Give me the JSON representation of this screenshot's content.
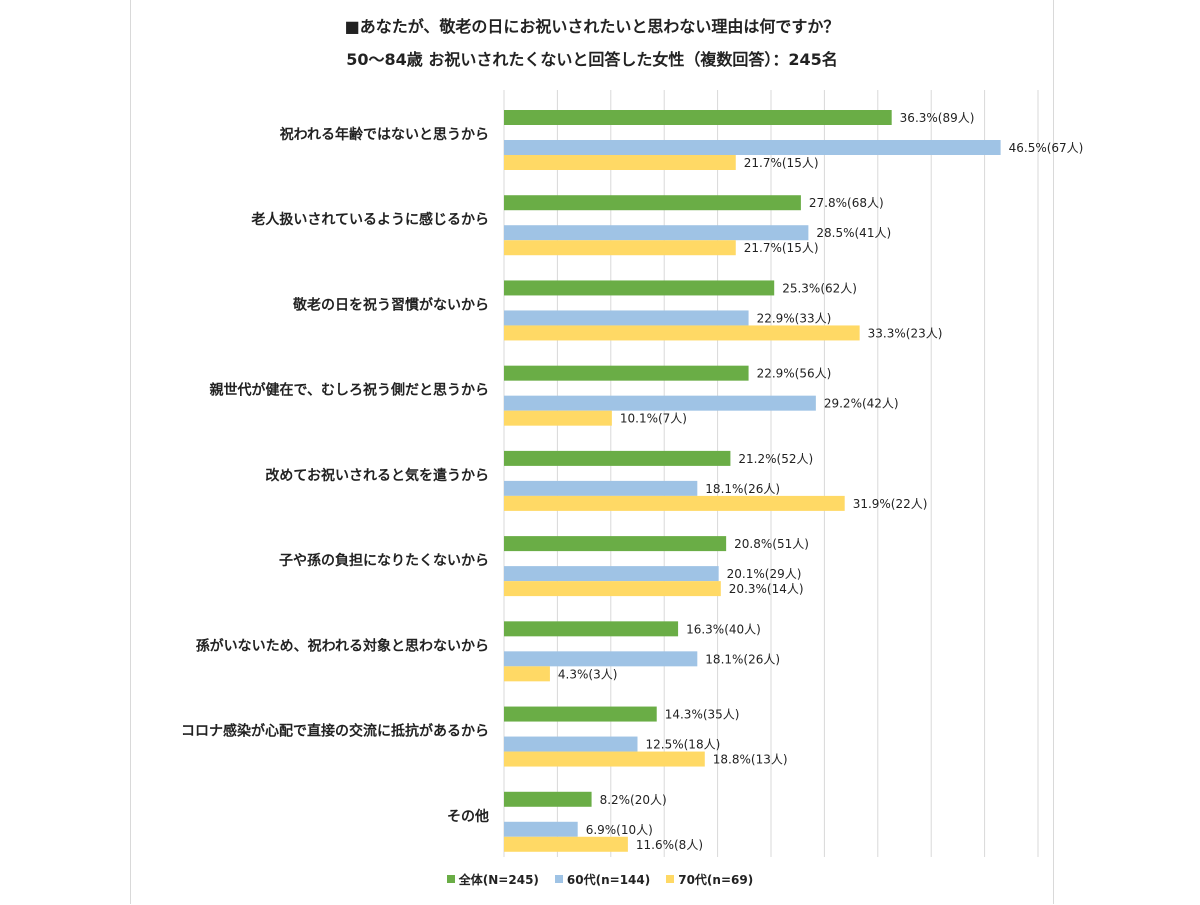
{
  "chart_data": {
    "type": "bar",
    "orientation": "horizontal",
    "title": "■あなたが、敬老の日にお祝いされたいと思わない理由は何ですか？",
    "subtitle": "50〜84歳 お祝いされたくないと回答した女性（複数回答）：245名",
    "xlim": [
      0,
      50
    ],
    "grid": true,
    "legend_position": "bottom",
    "categories": [
      "祝われる年齢ではないと思うから",
      "老人扱いされているように感じるから",
      "敬老の日を祝う習慣がないから",
      "親世代が健在で、むしろ祝う側だと思うから",
      "改めてお祝いされると気を遣うから",
      "子や孫の負担になりたくないから",
      "孫がいないため、祝われる対象と思わないから",
      "コロナ感染が心配で直接の交流に抵抗があるから",
      "その他"
    ],
    "series": [
      {
        "name": "全体(N=245)",
        "color": "#6aad46",
        "values": [
          36.3,
          27.8,
          25.3,
          22.9,
          21.2,
          20.8,
          16.3,
          14.3,
          8.2
        ],
        "labels": [
          "36.3%(89人)",
          "27.8%(68人)",
          "25.3%(62人)",
          "22.9%(56人)",
          "21.2%(52人)",
          "20.8%(51人)",
          "16.3%(40人)",
          "14.3%(35人)",
          "8.2%(20人)"
        ]
      },
      {
        "name": "60代(n=144)",
        "color": "#9fc3e5",
        "values": [
          46.5,
          28.5,
          22.9,
          29.2,
          18.1,
          20.1,
          18.1,
          12.5,
          6.9
        ],
        "labels": [
          "46.5%(67人)",
          "28.5%(41人)",
          "22.9%(33人)",
          "29.2%(42人)",
          "18.1%(26人)",
          "20.1%(29人)",
          "18.1%(26人)",
          "12.5%(18人)",
          "6.9%(10人)"
        ]
      },
      {
        "name": "70代(n=69)",
        "color": "#ffd965",
        "values": [
          21.7,
          21.7,
          33.3,
          10.1,
          31.9,
          20.3,
          4.3,
          18.8,
          11.6
        ],
        "labels": [
          "21.7%(15人)",
          "21.7%(15人)",
          "33.3%(23人)",
          "10.1%(7人)",
          "31.9%(22人)",
          "20.3%(14人)",
          "4.3%(3人)",
          "18.8%(13人)",
          "11.6%(8人)"
        ]
      }
    ]
  }
}
